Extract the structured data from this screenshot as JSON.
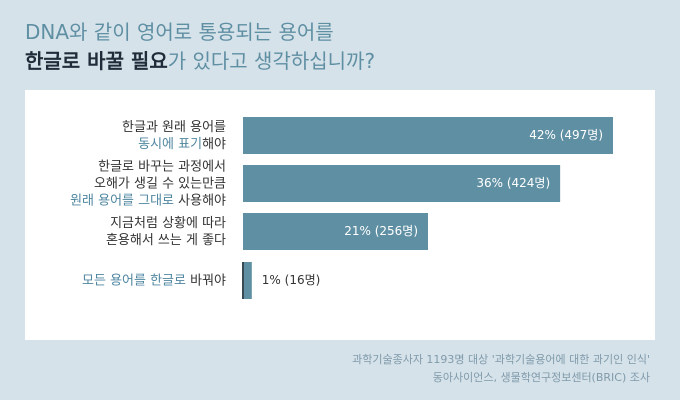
{
  "chart_data": {
    "type": "bar",
    "orientation": "horizontal",
    "title": [
      [
        {
          "text": "DNA와 같이 영어로 통용되는 용어를",
          "color": "#5f8fa3"
        }
      ],
      [
        {
          "text": "한글로 바꿀 필요",
          "color": "#1f2d3a"
        },
        {
          "text": "가 있다고 생각하십니까?",
          "color": "#5f8fa3"
        }
      ]
    ],
    "categories": [
      [
        [
          {
            "text": "한글과 원래 용어를",
            "color": "#333333"
          }
        ],
        [
          {
            "text": "동시에 표기",
            "color": "#4f86a0"
          },
          {
            "text": "해야",
            "color": "#333333"
          }
        ]
      ],
      [
        [
          {
            "text": "한글로 바꾸는 과정에서",
            "color": "#333333"
          }
        ],
        [
          {
            "text": "오해가 생길 수 있는만큼",
            "color": "#333333"
          }
        ],
        [
          {
            "text": "원래 용어를 그대로",
            "color": "#4f86a0"
          },
          {
            "text": " 사용해야",
            "color": "#333333"
          }
        ]
      ],
      [
        [
          {
            "text": "지금처럼 상황에 따라",
            "color": "#333333"
          }
        ],
        [
          {
            "text": "혼용해서 쓰는 게 좋다",
            "color": "#333333"
          }
        ]
      ],
      [
        [
          {
            "text": "모든 용어를 한글로",
            "color": "#4f86a0"
          },
          {
            "text": " 바꿔야",
            "color": "#333333"
          }
        ]
      ]
    ],
    "values": [
      42,
      36,
      21,
      1
    ],
    "value_labels": [
      "42% (497명)",
      "36% (424명)",
      "21% (256명)",
      "1% (16명)"
    ],
    "color": "#5f8fa3",
    "footnote": [
      "과학기술종사자 1193명 대상 '과학기술용어에 대한 과기인 인식'",
      "동아사이언스, 생물학연구정보센터(BRIC) 조사"
    ]
  }
}
